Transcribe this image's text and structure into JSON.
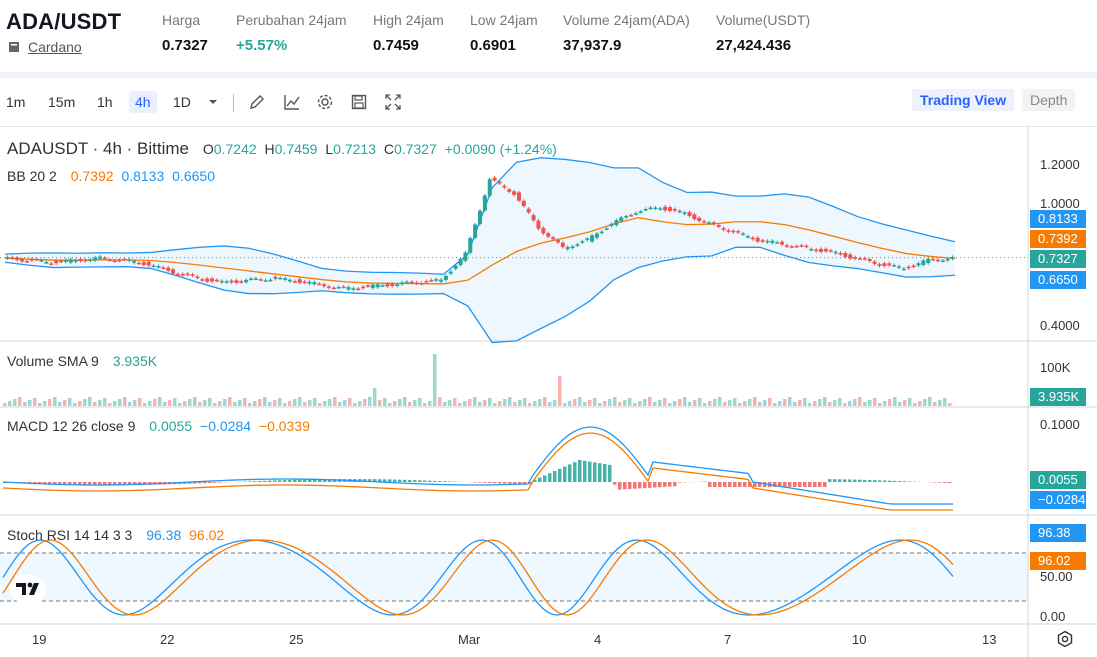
{
  "header": {
    "pair": "ADA/USDT",
    "coin_name": "Cardano",
    "stats": [
      {
        "label": "Harga",
        "value": "0.7327",
        "color": "normal"
      },
      {
        "label": "Perubahan 24jam",
        "value": "+5.57%",
        "color": "green"
      },
      {
        "label": "High 24jam",
        "value": "0.7459",
        "color": "normal"
      },
      {
        "label": "Low 24jam",
        "value": "0.6901",
        "color": "normal"
      },
      {
        "label": "Volume 24jam(ADA)",
        "value": "37,937.9",
        "color": "normal"
      },
      {
        "label": "Volume(USDT)",
        "value": "27,424.436",
        "color": "normal"
      }
    ]
  },
  "toolbar": {
    "timeframes": [
      "1m",
      "15m",
      "1h",
      "4h",
      "1D"
    ],
    "active_timeframe": "4h",
    "icons": [
      "chevron-down-icon",
      "pencil-icon",
      "line-chart-icon",
      "gear-icon",
      "save-icon",
      "fullscreen-icon"
    ],
    "views": {
      "trading_view": "Trading View",
      "depth": "Depth"
    }
  },
  "main_legend": {
    "symbol": "ADAUSDT · 4h · Bittime",
    "o_label": "O",
    "o": "0.7242",
    "h_label": "H",
    "h": "0.7459",
    "l_label": "L",
    "l": "0.7213",
    "c_label": "C",
    "c": "0.7327",
    "change": "+0.0090 (+1.24%)"
  },
  "bb_legend": {
    "label": "BB 20 2",
    "middle": "0.7392",
    "upper": "0.8133",
    "lower": "0.6650"
  },
  "volume_legend": {
    "label": "Volume SMA 9",
    "value": "3.935K"
  },
  "macd_legend": {
    "label": "MACD 12 26 close 9",
    "hist": "0.0055",
    "macd": "−0.0284",
    "signal": "−0.0339"
  },
  "stoch_legend": {
    "label": "Stoch RSI 14 14 3 3",
    "k": "96.38",
    "d": "96.02"
  },
  "price_axis": [
    "1.2000",
    "1.0000",
    "0.4000"
  ],
  "price_tags": {
    "upper": "0.8133",
    "middle": "0.7392",
    "close": "0.7327",
    "lower": "0.6650"
  },
  "volume_axis": "100K",
  "volume_tag": "3.935K",
  "macd_axis": "0.1000",
  "macd_tags": {
    "hist": "0.0055",
    "macd": "−0.0284"
  },
  "stoch_axis": [
    "50.00",
    "0.00"
  ],
  "stoch_tags": {
    "k": "96.38",
    "d": "96.02"
  },
  "dates": [
    "19",
    "22",
    "25",
    "Mar",
    "4",
    "7",
    "10",
    "13"
  ],
  "colors": {
    "up": "#26a69a",
    "down": "#ef5350",
    "bb_band": "#2196f3",
    "bb_mid": "#f57c00",
    "accent": "#2962ff"
  },
  "chart_data": {
    "type": "candlestick",
    "x": [
      "19",
      "22",
      "25",
      "Mar",
      "4",
      "7",
      "10",
      "13"
    ],
    "last_close": 0.7327,
    "close_series": [
      0.73,
      0.72,
      0.71,
      0.72,
      0.73,
      0.72,
      0.7,
      0.66,
      0.63,
      0.61,
      0.62,
      0.63,
      0.62,
      0.6,
      0.58,
      0.59,
      0.6,
      0.61,
      0.62,
      0.75,
      1.12,
      1.05,
      0.88,
      0.78,
      0.82,
      0.9,
      0.96,
      0.98,
      0.95,
      0.9,
      0.86,
      0.82,
      0.8,
      0.78,
      0.76,
      0.73,
      0.7,
      0.68,
      0.72,
      0.73
    ]
  }
}
